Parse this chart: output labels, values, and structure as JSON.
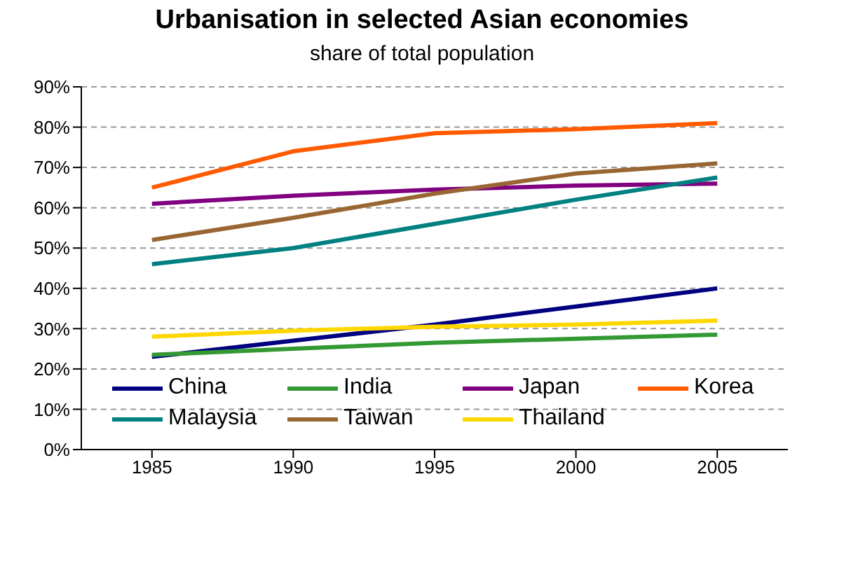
{
  "chart_data": {
    "type": "line",
    "title": "Urbanisation in selected Asian economies",
    "subtitle": "share of total population",
    "categories": [
      "1985",
      "1990",
      "1995",
      "2000",
      "2005"
    ],
    "series": [
      {
        "name": "China",
        "color": "#000080",
        "values": [
          23,
          27,
          31,
          35.5,
          40
        ]
      },
      {
        "name": "India",
        "color": "#339933",
        "values": [
          23.5,
          25,
          26.5,
          27.5,
          28.5
        ]
      },
      {
        "name": "Japan",
        "color": "#800080",
        "values": [
          61,
          63,
          64.5,
          65.5,
          66
        ]
      },
      {
        "name": "Korea",
        "color": "#ff5a00",
        "values": [
          65,
          74,
          78.5,
          79.5,
          81
        ]
      },
      {
        "name": "Malaysia",
        "color": "#008080",
        "values": [
          46,
          50,
          56,
          62,
          67.5
        ]
      },
      {
        "name": "Taiwan",
        "color": "#996633",
        "values": [
          52,
          57.5,
          63.5,
          68.5,
          71
        ]
      },
      {
        "name": "Thailand",
        "color": "#ffd700",
        "values": [
          28,
          29.5,
          30.5,
          31,
          32
        ]
      }
    ],
    "ylim": [
      0,
      90
    ],
    "yticks": [
      {
        "value": 0,
        "label": "0%"
      },
      {
        "value": 10,
        "label": "10%"
      },
      {
        "value": 20,
        "label": "20%"
      },
      {
        "value": 30,
        "label": "30%"
      },
      {
        "value": 40,
        "label": "40%"
      },
      {
        "value": 50,
        "label": "50%"
      },
      {
        "value": 60,
        "label": "60%"
      },
      {
        "value": 70,
        "label": "70%"
      },
      {
        "value": 80,
        "label": "80%"
      },
      {
        "value": 90,
        "label": "90%"
      }
    ],
    "grid": "y",
    "legend": "bottom",
    "marker": "none",
    "line_style": "solid"
  }
}
